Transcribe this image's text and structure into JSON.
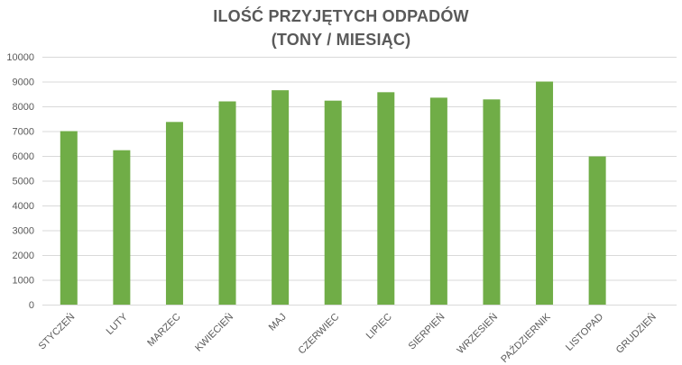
{
  "chart_data": {
    "type": "bar",
    "title": "ILOŚĆ PRZYJĘTYCH ODPADÓW",
    "subtitle": "(TONY / MIESIĄC)",
    "xlabel": "",
    "ylabel": "",
    "categories": [
      "STYCZEŃ",
      "LUTY",
      "MARZEC",
      "KWIECIEŃ",
      "MAJ",
      "CZERWIEC",
      "LIPIEC",
      "SIERPIEŃ",
      "WRZESIEŃ",
      "PAŹDZIERNIK",
      "LISTOPAD",
      "GRUDZIEŃ"
    ],
    "values": [
      7000,
      6230,
      7370,
      8200,
      8650,
      8230,
      8570,
      8350,
      8280,
      9000,
      5980,
      null
    ],
    "ylim": [
      0,
      10000
    ],
    "yticks": [
      0,
      1000,
      2000,
      3000,
      4000,
      5000,
      6000,
      7000,
      8000,
      9000,
      10000
    ],
    "grid": true,
    "legend": "none",
    "bar_color": "#70ad47"
  }
}
